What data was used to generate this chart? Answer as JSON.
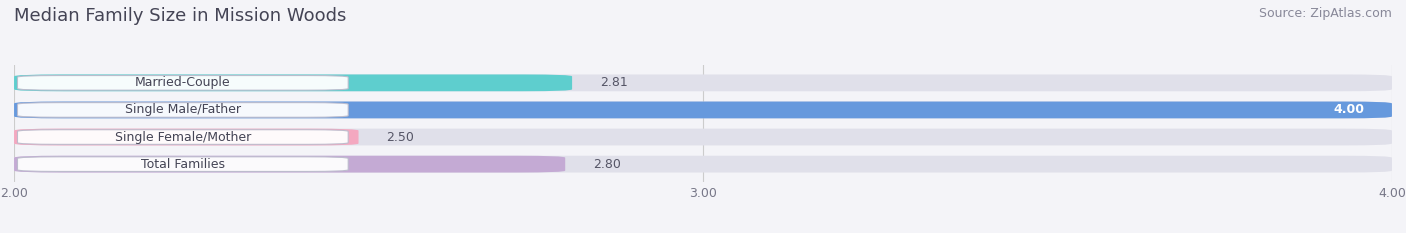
{
  "title": "Median Family Size in Mission Woods",
  "source": "Source: ZipAtlas.com",
  "categories": [
    "Married-Couple",
    "Single Male/Father",
    "Single Female/Mother",
    "Total Families"
  ],
  "values": [
    2.81,
    4.0,
    2.5,
    2.8
  ],
  "bar_colors": [
    "#5ecece",
    "#6699dd",
    "#f4a8c0",
    "#c4aad4"
  ],
  "xmin": 2.0,
  "xmax": 4.0,
  "xticks": [
    2.0,
    3.0,
    4.0
  ],
  "xtick_labels": [
    "2.00",
    "3.00",
    "4.00"
  ],
  "background_color": "#f4f4f8",
  "bar_bg_color": "#e0e0ea",
  "title_fontsize": 13,
  "source_fontsize": 9,
  "label_fontsize": 9,
  "value_fontsize": 9
}
